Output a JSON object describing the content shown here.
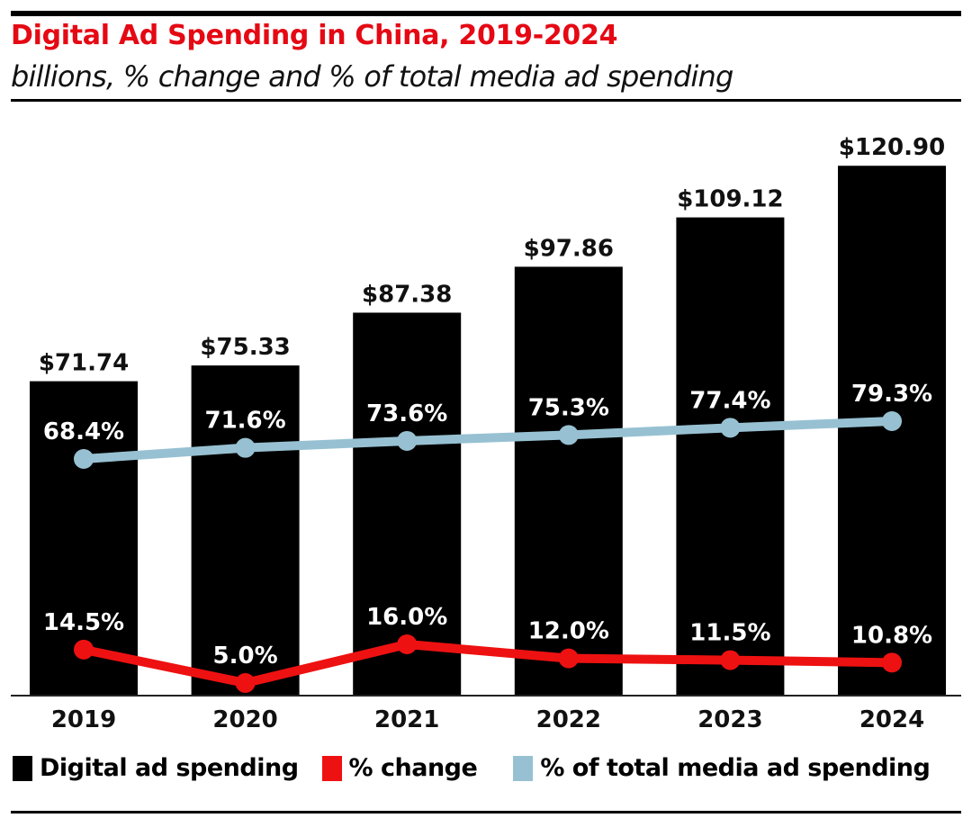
{
  "header": {
    "title": "Digital Ad Spending in China, 2019-2024",
    "subtitle": "billions, % change and % of total media ad spending"
  },
  "colors": {
    "title": "#e50914",
    "bars": "#000000",
    "pct_change": "#ee1111",
    "pct_total": "#97c1d2"
  },
  "chart_data": {
    "type": "bar",
    "title": "Digital Ad Spending in China, 2019-2024",
    "subtitle": "billions, % change and % of total media ad spending",
    "xlabel": "",
    "ylabel": "",
    "categories": [
      "2019",
      "2020",
      "2021",
      "2022",
      "2023",
      "2024"
    ],
    "grid": false,
    "legend_position": "bottom",
    "series": [
      {
        "name": "Digital ad spending",
        "type": "bar",
        "unit": "billions",
        "values": [
          71.74,
          75.33,
          87.38,
          97.86,
          109.12,
          120.9
        ],
        "labels": [
          "$71.74",
          "$75.33",
          "$87.38",
          "$97.86",
          "$109.12",
          "$120.90"
        ]
      },
      {
        "name": "% change",
        "type": "line",
        "unit": "%",
        "values": [
          14.5,
          5.0,
          16.0,
          12.0,
          11.5,
          10.8
        ],
        "labels": [
          "14.5%",
          "5.0%",
          "16.0%",
          "12.0%",
          "11.5%",
          "10.8%"
        ]
      },
      {
        "name": "% of total media ad spending",
        "type": "line",
        "unit": "%",
        "values": [
          68.4,
          71.6,
          73.6,
          75.3,
          77.4,
          79.3
        ],
        "labels": [
          "68.4%",
          "71.6%",
          "73.6%",
          "75.3%",
          "77.4%",
          "79.3%"
        ]
      }
    ]
  },
  "legend": {
    "items": [
      {
        "label": "Digital ad spending",
        "color": "#000000"
      },
      {
        "label": "% change",
        "color": "#ee1111"
      },
      {
        "label": "% of total media ad spending",
        "color": "#97c1d2"
      }
    ]
  }
}
